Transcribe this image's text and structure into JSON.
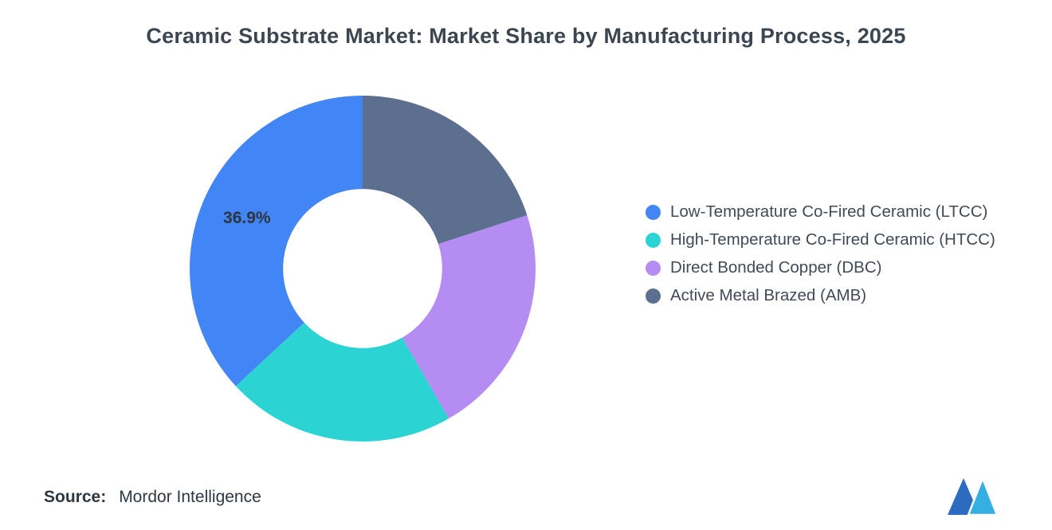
{
  "title": "Ceramic Substrate Market: Market Share by Manufacturing Process, 2025",
  "chart_data": {
    "type": "pie",
    "subtype": "donut",
    "title": "Ceramic Substrate Market: Market Share by Manufacturing Process, 2025",
    "categories": [
      "Low-Temperature Co-Fired Ceramic (LTCC)",
      "High-Temperature Co-Fired Ceramic (HTCC)",
      "Direct Bonded Copper (DBC)",
      "Active Metal Brazed (AMB)"
    ],
    "values": [
      36.9,
      21.4,
      21.7,
      20.0
    ],
    "value_labels": [
      "36.9%",
      "",
      "",
      ""
    ],
    "colors": [
      "#4285F4",
      "#2CD3D3",
      "#B58CF2",
      "#5C6F8F"
    ],
    "start_angle_deg": 0,
    "direction": "counterclockwise",
    "inner_radius_ratio": 0.46,
    "legend_position": "right",
    "background": "#FFFFFF"
  },
  "slice_label_color": "#2D3640",
  "source": {
    "label": "Source:",
    "value": "Mordor Intelligence"
  },
  "logo": {
    "name": "mordor-intelligence-logo",
    "colors": {
      "primary": "#2C6BBF",
      "accent": "#35AEE2"
    }
  }
}
